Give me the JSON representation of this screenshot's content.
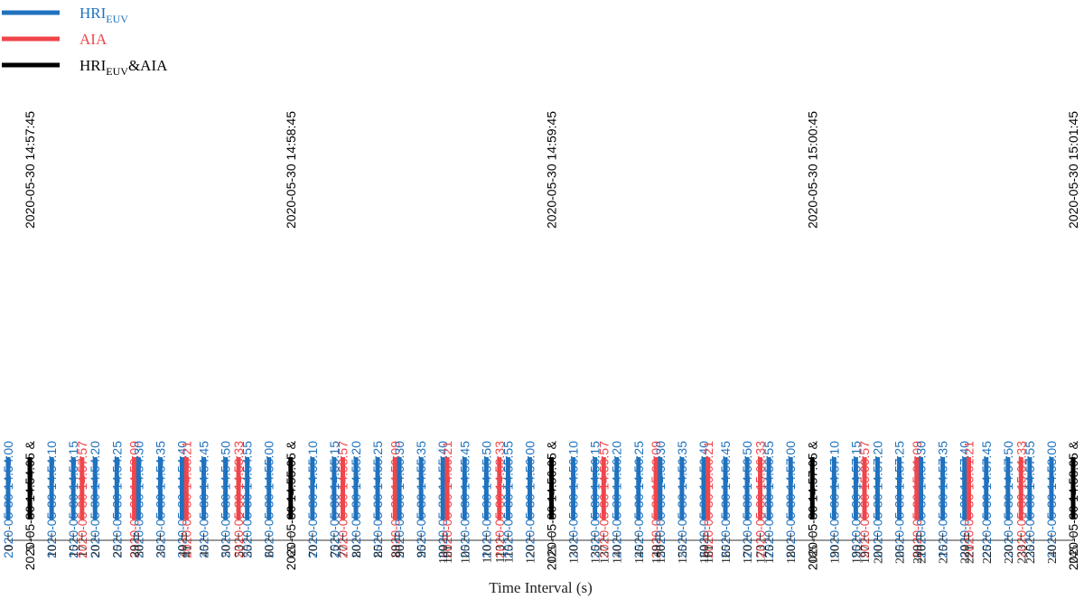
{
  "chart_data": {
    "type": "bar",
    "xlabel": "Time Interval (s)",
    "xlim": [
      0,
      245
    ],
    "colors": {
      "HRI_EUV": "#1f72bf",
      "AIA": "#f0454b",
      "HRI_EUV&AIA": "#000000"
    },
    "legend": [
      {
        "key": "HRI_EUV",
        "base": "HRI",
        "sub": "EUV",
        "suffix": ""
      },
      {
        "key": "AIA",
        "base": "AIA",
        "sub": "",
        "suffix": ""
      },
      {
        "key": "HRI_EUV&AIA",
        "base": "HRI",
        "sub": "EUV",
        "suffix": "&AIA"
      }
    ],
    "upper_labels": [
      {
        "x": 5,
        "text": "2020-05-30 14:57:45"
      },
      {
        "x": 65,
        "text": "2020-05-30 14:58:45"
      },
      {
        "x": 125,
        "text": "2020-05-30 14:59:45"
      },
      {
        "x": 185,
        "text": "2020-05-30 15:00:45"
      },
      {
        "x": 245,
        "text": "2020-05-30 15:01:45"
      }
    ],
    "events": [
      {
        "x": 0,
        "type": "HRI_EUV",
        "label": "2020-05-30 14:54:00"
      },
      {
        "x": 5,
        "type": "HRI_EUV&AIA",
        "label": "2020-05-30 14:54:05 &"
      },
      {
        "x": 10,
        "type": "HRI_EUV",
        "label": "2020-05-30 14:54:10"
      },
      {
        "x": 15,
        "type": "HRI_EUV",
        "label": "2020-05-30 14:54:15"
      },
      {
        "x": 17,
        "type": "AIA",
        "label": "2020-05-30 14:57:57"
      },
      {
        "x": 20,
        "type": "HRI_EUV",
        "label": "2020-05-30 14:54:20"
      },
      {
        "x": 25,
        "type": "HRI_EUV",
        "label": "2020-05-30 14:54:25"
      },
      {
        "x": 29,
        "type": "AIA",
        "label": "2020-05-30 14:58:09"
      },
      {
        "x": 30,
        "type": "HRI_EUV",
        "label": "2020-05-30 14:54:30"
      },
      {
        "x": 35,
        "type": "HRI_EUV",
        "label": "2020-05-30 14:54:35"
      },
      {
        "x": 40,
        "type": "HRI_EUV",
        "label": "2020-05-30 14:54:40"
      },
      {
        "x": 41,
        "type": "AIA",
        "label": "2020-05-30 14:58:21"
      },
      {
        "x": 45,
        "type": "HRI_EUV",
        "label": "2020-05-30 14:54:45"
      },
      {
        "x": 50,
        "type": "HRI_EUV",
        "label": "2020-05-30 14:54:50"
      },
      {
        "x": 53,
        "type": "AIA",
        "label": "2020-05-30 14:58:33"
      },
      {
        "x": 55,
        "type": "HRI_EUV",
        "label": "2020-05-30 14:54:55"
      },
      {
        "x": 60,
        "type": "HRI_EUV",
        "label": "2020-05-30 14:55:00"
      },
      {
        "x": 65,
        "type": "HRI_EUV&AIA",
        "label": "2020-05-30 14:55:05 &"
      },
      {
        "x": 70,
        "type": "HRI_EUV",
        "label": "2020-05-30 14:55:10"
      },
      {
        "x": 75,
        "type": "HRI_EUV",
        "label": "2020-05-30 14:55:15"
      },
      {
        "x": 77,
        "type": "AIA",
        "label": "2020-05-30 14:58:57"
      },
      {
        "x": 80,
        "type": "HRI_EUV",
        "label": "2020-05-30 14:55:20"
      },
      {
        "x": 85,
        "type": "HRI_EUV",
        "label": "2020-05-30 14:55:25"
      },
      {
        "x": 89,
        "type": "AIA",
        "label": "2020-05-30 14:59:09"
      },
      {
        "x": 90,
        "type": "HRI_EUV",
        "label": "2020-05-30 14:55:30"
      },
      {
        "x": 95,
        "type": "HRI_EUV",
        "label": "2020-05-30 14:55:35"
      },
      {
        "x": 100,
        "type": "HRI_EUV",
        "label": "2020-05-30 14:55:40"
      },
      {
        "x": 101,
        "type": "AIA",
        "label": "2020-05-30 14:59:21"
      },
      {
        "x": 105,
        "type": "HRI_EUV",
        "label": "2020-05-30 14:55:45"
      },
      {
        "x": 110,
        "type": "HRI_EUV",
        "label": "2020-05-30 14:55:50"
      },
      {
        "x": 113,
        "type": "AIA",
        "label": "2020-05-30 14:59:33"
      },
      {
        "x": 115,
        "type": "HRI_EUV",
        "label": "2020-05-30 14:55:55"
      },
      {
        "x": 120,
        "type": "HRI_EUV",
        "label": "2020-05-30 14:56:00"
      },
      {
        "x": 125,
        "type": "HRI_EUV&AIA",
        "label": "2020-05-30 14:56:05 &"
      },
      {
        "x": 130,
        "type": "HRI_EUV",
        "label": "2020-05-30 14:56:10"
      },
      {
        "x": 135,
        "type": "HRI_EUV",
        "label": "2020-05-30 14:56:15"
      },
      {
        "x": 137,
        "type": "AIA",
        "label": "2020-05-30 14:59:57"
      },
      {
        "x": 140,
        "type": "HRI_EUV",
        "label": "2020-05-30 14:56:20"
      },
      {
        "x": 145,
        "type": "HRI_EUV",
        "label": "2020-05-30 14:56:25"
      },
      {
        "x": 149,
        "type": "AIA",
        "label": "2020-05-30 15:00:09"
      },
      {
        "x": 150,
        "type": "HRI_EUV",
        "label": "2020-05-30 14:56:30"
      },
      {
        "x": 155,
        "type": "HRI_EUV",
        "label": "2020-05-30 14:56:35"
      },
      {
        "x": 160,
        "type": "HRI_EUV",
        "label": "2020-05-30 14:56:40"
      },
      {
        "x": 161,
        "type": "AIA",
        "label": "2020-05-30 15:00:21"
      },
      {
        "x": 165,
        "type": "HRI_EUV",
        "label": "2020-05-30 14:56:45"
      },
      {
        "x": 170,
        "type": "HRI_EUV",
        "label": "2020-05-30 14:56:50"
      },
      {
        "x": 173,
        "type": "AIA",
        "label": "2020-05-30 15:00:33"
      },
      {
        "x": 175,
        "type": "HRI_EUV",
        "label": "2020-05-30 14:56:55"
      },
      {
        "x": 180,
        "type": "HRI_EUV",
        "label": "2020-05-30 14:57:00"
      },
      {
        "x": 185,
        "type": "HRI_EUV&AIA",
        "label": "2020-05-30 14:57:05 &"
      },
      {
        "x": 190,
        "type": "HRI_EUV",
        "label": "2020-05-30 14:57:10"
      },
      {
        "x": 195,
        "type": "HRI_EUV",
        "label": "2020-05-30 14:57:15"
      },
      {
        "x": 197,
        "type": "AIA",
        "label": "2020-05-30 15:00:57"
      },
      {
        "x": 200,
        "type": "HRI_EUV",
        "label": "2020-05-30 14:57:20"
      },
      {
        "x": 205,
        "type": "HRI_EUV",
        "label": "2020-05-30 14:57:25"
      },
      {
        "x": 209,
        "type": "AIA",
        "label": "2020-05-30 15:01:09"
      },
      {
        "x": 210,
        "type": "HRI_EUV",
        "label": "2020-05-30 14:57:30"
      },
      {
        "x": 215,
        "type": "HRI_EUV",
        "label": "2020-05-30 14:57:35"
      },
      {
        "x": 220,
        "type": "HRI_EUV",
        "label": "2020-05-30 14:57:40"
      },
      {
        "x": 221,
        "type": "AIA",
        "label": "2020-05-30 15:01:21"
      },
      {
        "x": 225,
        "type": "HRI_EUV",
        "label": "2020-05-30 14:57:45"
      },
      {
        "x": 230,
        "type": "HRI_EUV",
        "label": "2020-05-30 14:57:50"
      },
      {
        "x": 233,
        "type": "AIA",
        "label": "2020-05-30 15:01:33"
      },
      {
        "x": 235,
        "type": "HRI_EUV",
        "label": "2020-05-30 14:57:55"
      },
      {
        "x": 240,
        "type": "HRI_EUV",
        "label": "2020-05-30 14:58:00"
      },
      {
        "x": 245,
        "type": "HRI_EUV&AIA",
        "label": "2020-05-30 14:58:05 &"
      }
    ]
  }
}
